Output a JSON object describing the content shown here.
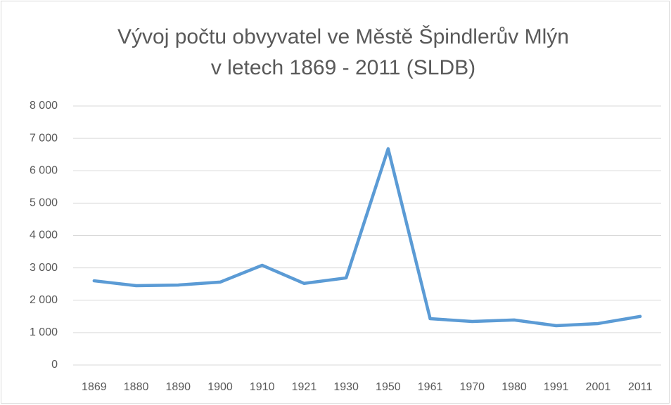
{
  "chart_data": {
    "type": "line",
    "title": [
      "Vývoj počtu obvyvatel ve Městě Špindlerův Mlýn",
      "v letech 1869 - 2011 (SLDB)"
    ],
    "categories": [
      "1869",
      "1880",
      "1890",
      "1900",
      "1910",
      "1921",
      "1930",
      "1950",
      "1961",
      "1970",
      "1980",
      "1991",
      "2001",
      "2011"
    ],
    "series": [
      {
        "color": "#5b9bd5",
        "values": [
          2600,
          2450,
          2470,
          2560,
          3080,
          2520,
          2690,
          6680,
          1430,
          1345,
          1390,
          1215,
          1280,
          1500
        ]
      }
    ],
    "ylim": [
      0,
      8000
    ],
    "yticks": [
      0,
      {
        "value": 1000,
        "label": "1 000"
      },
      {
        "value": 2000,
        "label": "2 000"
      },
      {
        "value": 3000,
        "label": "3 000"
      },
      {
        "value": 4000,
        "label": "4 000"
      },
      {
        "value": 5000,
        "label": "5 000"
      },
      {
        "value": 6000,
        "label": "6 000"
      },
      {
        "value": 7000,
        "label": "7 000"
      },
      {
        "value": 8000,
        "label": "8 000"
      }
    ],
    "grid": true
  }
}
